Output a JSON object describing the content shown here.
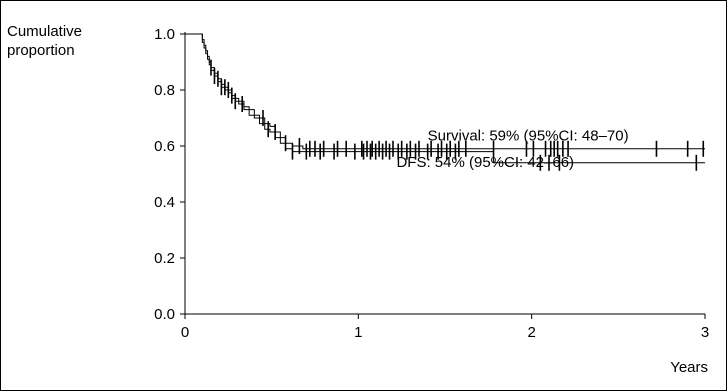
{
  "chart_data": {
    "type": "line",
    "title": "",
    "ylabel_lines": [
      "Cumulative",
      "proportion"
    ],
    "xlabel": "Years",
    "xlim": [
      0,
      3
    ],
    "ylim": [
      0,
      1
    ],
    "x_ticks": [
      0,
      1,
      2,
      3
    ],
    "x_tick_labels": [
      "0",
      "1",
      "2",
      "3"
    ],
    "y_ticks": [
      0,
      0.2,
      0.4,
      0.6,
      0.8,
      1.0
    ],
    "y_tick_labels": [
      "0.0",
      "0.2",
      "0.4",
      "0.6",
      "0.8",
      "1.0"
    ],
    "grid": false,
    "annotations": [
      {
        "text": "Survival: 59% (95%CI: 48–70)",
        "x": 1.4,
        "y": 0.62
      },
      {
        "text": "DFS: 54% (95%CI: 42–66)",
        "x": 1.22,
        "y": 0.525
      }
    ],
    "series": [
      {
        "x": [
          0,
          0.09,
          0.1,
          0.11,
          0.12,
          0.13,
          0.14,
          0.15,
          0.17,
          0.19,
          0.21,
          0.23,
          0.25,
          0.27,
          0.29,
          0.31,
          0.34,
          0.37,
          0.4,
          0.43,
          0.46,
          0.49,
          0.52,
          0.55,
          0.58,
          0.62,
          0.68,
          3.0
        ],
        "y": [
          1.0,
          1.0,
          0.98,
          0.96,
          0.94,
          0.92,
          0.9,
          0.88,
          0.86,
          0.84,
          0.82,
          0.81,
          0.8,
          0.78,
          0.77,
          0.76,
          0.74,
          0.73,
          0.71,
          0.7,
          0.68,
          0.67,
          0.65,
          0.63,
          0.61,
          0.6,
          0.59,
          0.59
        ],
        "censor_x": [
          0.15,
          0.19,
          0.23,
          0.25,
          0.27,
          0.45,
          0.52,
          0.58,
          0.66,
          0.72,
          0.75,
          0.8,
          0.88,
          0.93,
          1.02,
          1.05,
          1.08,
          1.12,
          1.16,
          1.2,
          1.25,
          1.3,
          1.35,
          1.42,
          1.48,
          1.53,
          1.58,
          1.62,
          1.78,
          1.97,
          2.01,
          2.08,
          2.11,
          2.13,
          2.15,
          2.18,
          2.21,
          2.72,
          2.9,
          2.99
        ]
      },
      {
        "x": [
          0,
          0.09,
          0.1,
          0.11,
          0.12,
          0.13,
          0.14,
          0.15,
          0.17,
          0.19,
          0.21,
          0.23,
          0.25,
          0.27,
          0.29,
          0.31,
          0.34,
          0.37,
          0.4,
          0.43,
          0.46,
          0.49,
          0.52,
          0.55,
          0.58,
          0.62,
          1.77,
          1.78,
          3.0
        ],
        "y": [
          1.0,
          1.0,
          0.97,
          0.95,
          0.93,
          0.91,
          0.89,
          0.87,
          0.85,
          0.83,
          0.81,
          0.8,
          0.79,
          0.77,
          0.76,
          0.75,
          0.73,
          0.71,
          0.7,
          0.68,
          0.66,
          0.65,
          0.63,
          0.61,
          0.59,
          0.58,
          0.58,
          0.54,
          0.54
        ],
        "censor_x": [
          0.17,
          0.21,
          0.29,
          0.33,
          0.48,
          0.62,
          0.7,
          0.78,
          0.86,
          0.98,
          1.03,
          1.07,
          1.1,
          1.14,
          1.18,
          1.23,
          1.28,
          1.33,
          1.4,
          1.46,
          1.51,
          1.56,
          2.05,
          2.1,
          2.16,
          2.95
        ]
      }
    ]
  }
}
